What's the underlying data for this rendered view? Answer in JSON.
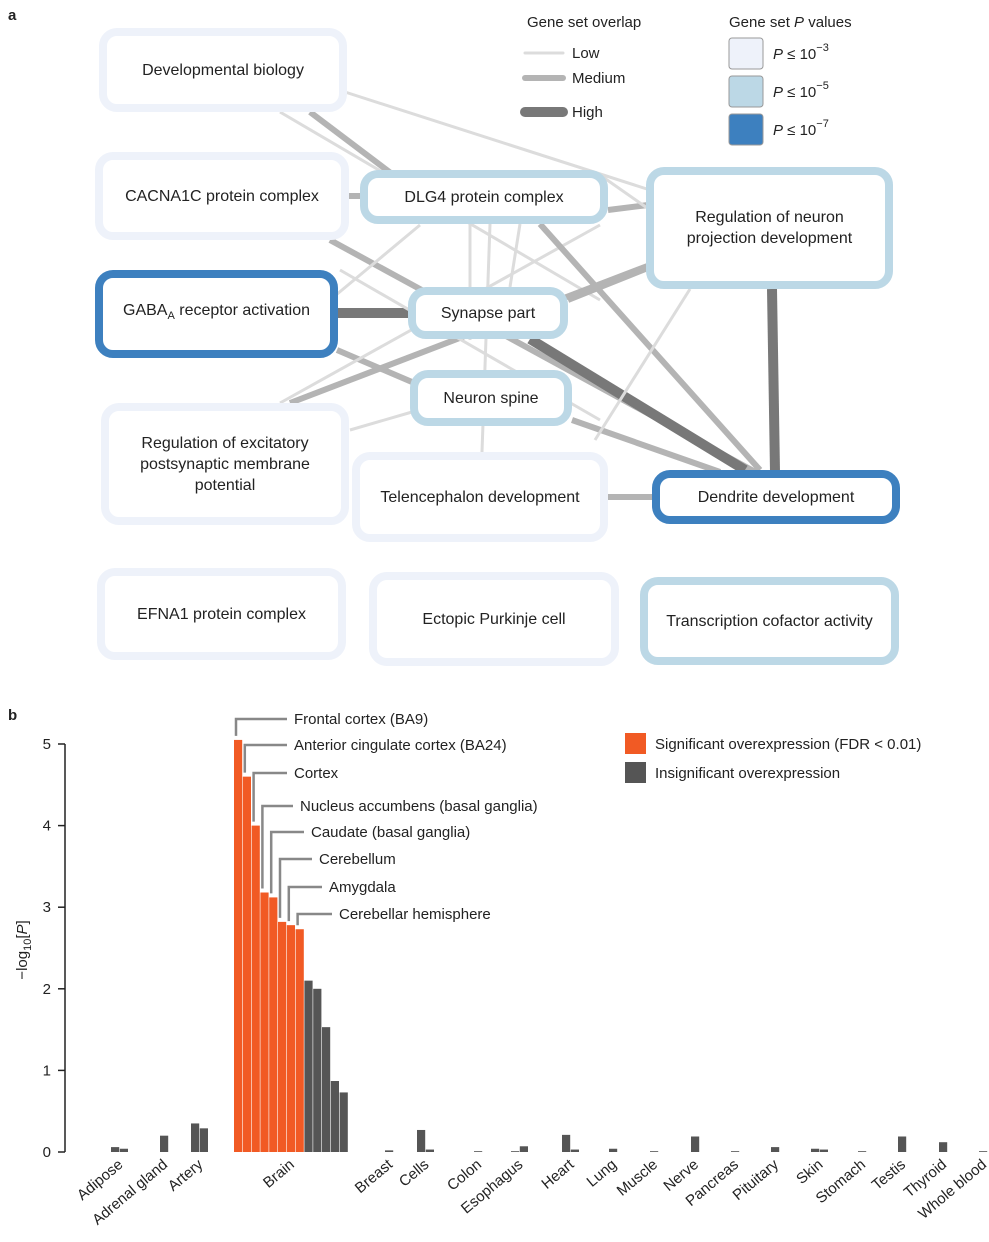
{
  "panel_a": {
    "panel_label": "a",
    "overlap_legend": {
      "title": "Gene set overlap",
      "items": [
        {
          "label": "Low",
          "color": "#dcdcdc"
        },
        {
          "label": "Medium",
          "color": "#b4b4b4"
        },
        {
          "label": "High",
          "color": "#787878"
        }
      ]
    },
    "p_legend": {
      "title_before": "Gene set ",
      "title_var": "P",
      "title_after": " values",
      "items": [
        {
          "var": "P",
          "text": " ≤ 10",
          "exponent": "−3",
          "color": "#eef2fa"
        },
        {
          "var": "P",
          "text": " ≤ 10",
          "exponent": "−5",
          "color": "#bcd8e6"
        },
        {
          "var": "P",
          "text": " ≤ 10",
          "exponent": "−7",
          "color": "#3d80bf"
        }
      ]
    },
    "nodes": [
      {
        "label": "Developmental biology",
        "color": "#eef2fa"
      },
      {
        "label": "CACNA1C protein complex",
        "color": "#eef2fa"
      },
      {
        "label": "DLG4 protein complex",
        "color": "#bcd8e6"
      },
      {
        "label": "Regulation of neuron projection development",
        "color": "#bcd8e6"
      },
      {
        "label": "GABA",
        "label_sub": "A",
        "label_rest": " receptor activation",
        "color": "#3d80bf"
      },
      {
        "label": "Synapse part",
        "color": "#bcd8e6"
      },
      {
        "label": "Neuron spine",
        "color": "#bcd8e6"
      },
      {
        "label": "Regulation of excitatory postsynaptic membrane potential",
        "color": "#eef2fa"
      },
      {
        "label": "Telencephalon development",
        "color": "#eef2fa"
      },
      {
        "label": "Dendrite development",
        "color": "#3d80bf"
      },
      {
        "label": "EFNA1 protein complex",
        "color": "#eef2fa"
      },
      {
        "label": "Ectopic Purkinje cell",
        "color": "#eef2fa"
      },
      {
        "label": "Transcription cofactor activity",
        "color": "#bcd8e6"
      }
    ]
  },
  "chart_data": {
    "type": "bar",
    "panel_label": "b",
    "ylabel": {
      "text": "−log",
      "sub": "10",
      "open": "[",
      "var": "P",
      "close": "]"
    },
    "ylim": [
      0,
      5
    ],
    "yticks": [
      0,
      1,
      2,
      3,
      4,
      5
    ],
    "categories": [
      "Adipose",
      "Adrenal gland",
      "Artery",
      "Brain",
      "Breast",
      "Cells",
      "Colon",
      "Esophagus",
      "Heart",
      "Lung",
      "Muscle",
      "Nerve",
      "Pancreas",
      "Pituitary",
      "Skin",
      "Stomach",
      "Testis",
      "Thyroid",
      "Whole blood"
    ],
    "series": [
      {
        "name": "Significant overexpression (FDR < 0.01)",
        "color": "#f15a24",
        "values": [
          [],
          [],
          [],
          [
            5.05,
            4.6,
            4.0,
            3.18,
            3.12,
            2.82,
            2.78,
            2.73
          ],
          [],
          [],
          [],
          [],
          [],
          [],
          [],
          [],
          [],
          [],
          [],
          [],
          [],
          [],
          []
        ],
        "labels": [
          [],
          [],
          [],
          [
            "Frontal cortex (BA9)",
            "Anterior cingulate cortex (BA24)",
            "Cortex",
            "Nucleus accumbens (basal ganglia)",
            "Caudate (basal ganglia)",
            "Cerebellum",
            "Amygdala",
            "Cerebellar hemisphere"
          ],
          [],
          [],
          [],
          [],
          [],
          [],
          [],
          [],
          [],
          [],
          [],
          [],
          [],
          [],
          []
        ]
      },
      {
        "name": "Insignificant overexpression",
        "color": "#555555",
        "values": [
          [
            0.06,
            0.04
          ],
          [
            0.2
          ],
          [
            0.35,
            0.29
          ],
          [
            2.1,
            2.0,
            1.53,
            0.87,
            0.73
          ],
          [
            0.02
          ],
          [
            0.27,
            0.03
          ],
          [
            0.01
          ],
          [
            0.01,
            0.07
          ],
          [
            0.21,
            0.03
          ],
          [
            0.04
          ],
          [
            0.01
          ],
          [
            0.19
          ],
          [
            0.01
          ],
          [
            0.06
          ],
          [
            0.04,
            0.03
          ],
          [
            0.01
          ],
          [
            0.19
          ],
          [
            0.12
          ],
          [
            0.01
          ]
        ]
      }
    ]
  }
}
